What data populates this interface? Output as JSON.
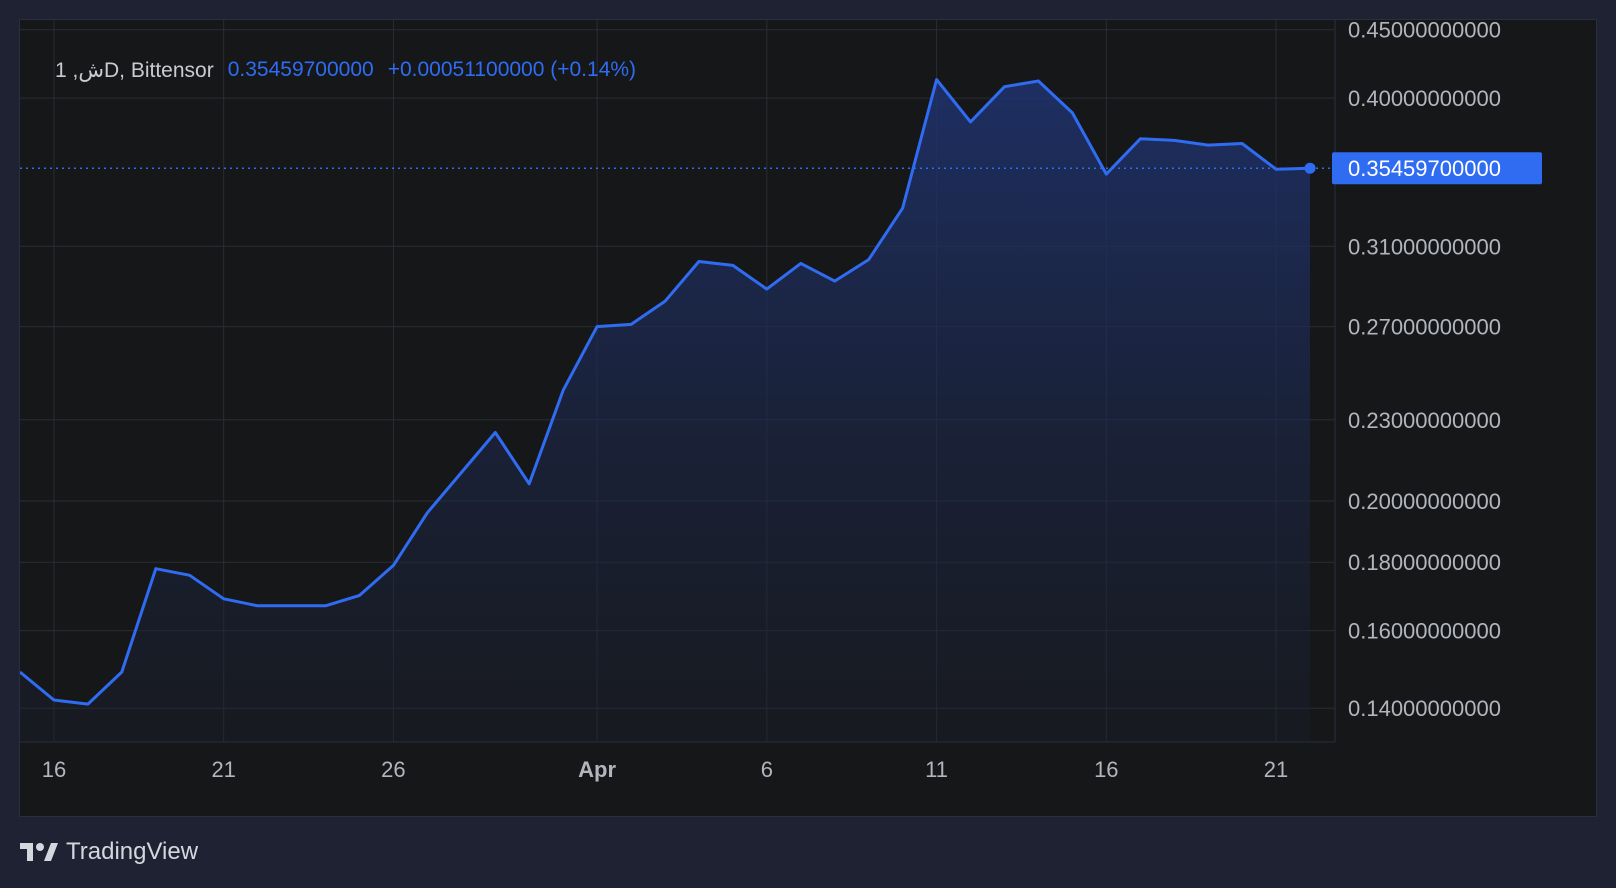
{
  "legend": {
    "symbol": "1 ,شD, Bittensor",
    "price": "0.35459700000",
    "change": "+0.00051100000 (+0.14%)"
  },
  "last_price_label": "0.35459700000",
  "branding": {
    "name": "TradingView",
    "logo_icon": "tradingview-logo-icon"
  },
  "colors": {
    "line": "#2f6cf2",
    "fill_top": "#1f3370",
    "background": "#161719",
    "grid": "#2a2d35",
    "axis_text": "#b2b5be",
    "price_tag": "#2f6cf2"
  },
  "chart_data": {
    "type": "area",
    "title": "",
    "xlabel": "",
    "ylabel": "",
    "ylim": [
      0.1321,
      0.4576
    ],
    "y_scale": "log",
    "grid": true,
    "x_tick_labels": [
      "16",
      "21",
      "26",
      "Apr",
      "6",
      "11",
      "16",
      "21"
    ],
    "x_tick_dates": [
      "Mar 16",
      "Mar 21",
      "Mar 26",
      "Apr 1",
      "Apr 6",
      "Apr 11",
      "Apr 16",
      "Apr 21"
    ],
    "y_tick_labels": [
      "0.45000000000",
      "0.40000000000",
      "0.31000000000",
      "0.27000000000",
      "0.23000000000",
      "0.20000000000",
      "0.18000000000",
      "0.16000000000",
      "0.14000000000"
    ],
    "y_tick_values": [
      0.45,
      0.4,
      0.31,
      0.27,
      0.23,
      0.2,
      0.18,
      0.16,
      0.14
    ],
    "current_price": 0.354597,
    "series": [
      {
        "x": [
          "Mar 15",
          "Mar 16",
          "Mar 17",
          "Mar 18",
          "Mar 19",
          "Mar 20",
          "Mar 21",
          "Mar 22",
          "Mar 23",
          "Mar 24",
          "Mar 25",
          "Mar 26",
          "Mar 27",
          "Mar 28",
          "Mar 29",
          "Mar 30",
          "Mar 31",
          "Apr 1",
          "Apr 2",
          "Apr 3",
          "Apr 4",
          "Apr 5",
          "Apr 6",
          "Apr 7",
          "Apr 8",
          "Apr 9",
          "Apr 10",
          "Apr 11",
          "Apr 12",
          "Apr 13",
          "Apr 14",
          "Apr 15",
          "Apr 16",
          "Apr 17",
          "Apr 18",
          "Apr 19",
          "Apr 20",
          "Apr 21",
          "Apr 22"
        ],
        "values": [
          0.149,
          0.142,
          0.141,
          0.149,
          0.178,
          0.176,
          0.169,
          0.167,
          0.167,
          0.167,
          0.17,
          0.179,
          0.196,
          0.21,
          0.225,
          0.206,
          0.242,
          0.27,
          0.271,
          0.282,
          0.302,
          0.3,
          0.288,
          0.301,
          0.292,
          0.303,
          0.331,
          0.413,
          0.384,
          0.408,
          0.412,
          0.39,
          0.351,
          0.373,
          0.372,
          0.369,
          0.37,
          0.354,
          0.3546
        ]
      }
    ]
  }
}
